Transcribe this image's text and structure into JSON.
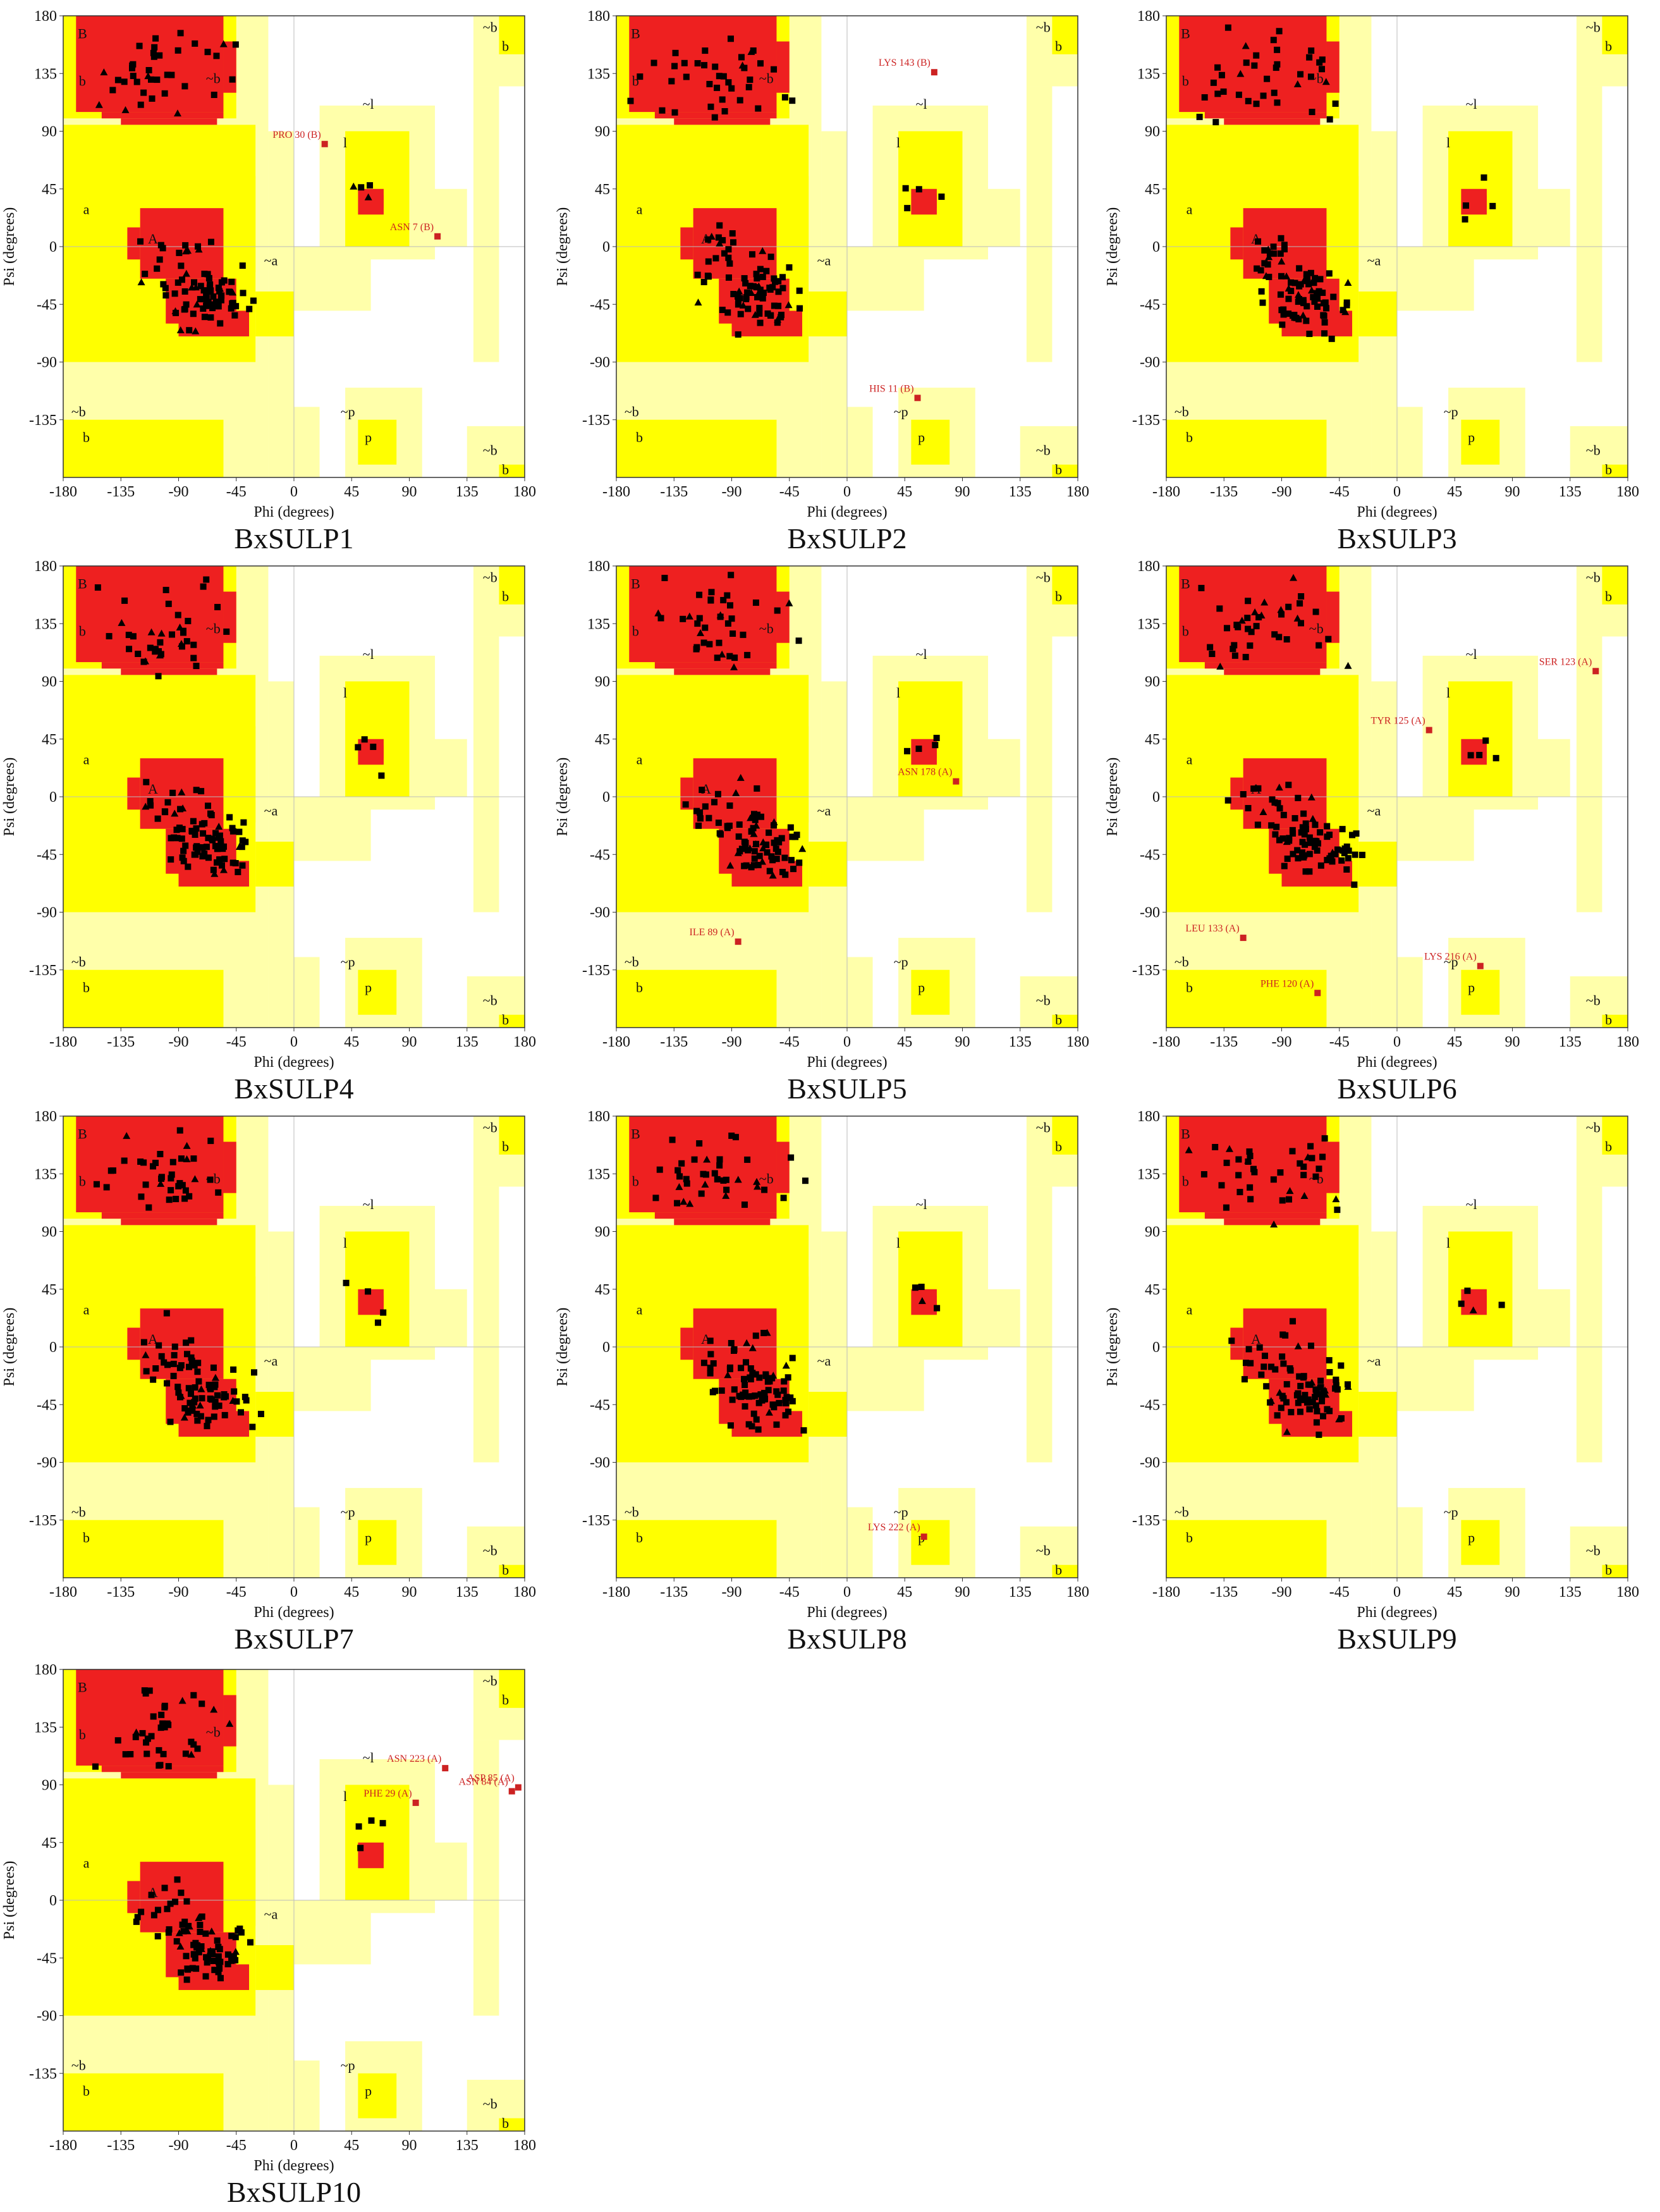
{
  "colors": {
    "core": "#ee2020",
    "allowed": "#ffff00",
    "generous": "#ffffaa",
    "frame": "#333333",
    "residue": "#000000",
    "outlier": "#cc2222"
  },
  "axis": {
    "xlabel": "Phi (degrees)",
    "ylabel": "Psi (degrees)",
    "xticks": [
      "-180",
      "-135",
      "-90",
      "-45",
      "0",
      "45",
      "90",
      "135",
      "180"
    ],
    "yticks": [
      "180",
      "135",
      "90",
      "45",
      "0",
      "-45",
      "-90",
      "-135"
    ]
  },
  "region_labels": [
    {
      "text": "B",
      "phi": -165,
      "psi": 165
    },
    {
      "text": "b",
      "phi": -165,
      "psi": 128
    },
    {
      "text": "~b",
      "phi": -63,
      "psi": 130
    },
    {
      "text": "~l",
      "phi": 58,
      "psi": 110
    },
    {
      "text": "l",
      "phi": 40,
      "psi": 80
    },
    {
      "text": "a",
      "phi": -162,
      "psi": 28
    },
    {
      "text": "A",
      "phi": -110,
      "psi": 5
    },
    {
      "text": "~a",
      "phi": -18,
      "psi": -12
    },
    {
      "text": "~b",
      "phi": -168,
      "psi": -130
    },
    {
      "text": "b",
      "phi": -162,
      "psi": -150
    },
    {
      "text": "~p",
      "phi": 42,
      "psi": -130
    },
    {
      "text": "p",
      "phi": 58,
      "psi": -150
    },
    {
      "text": "~b",
      "phi": 153,
      "psi": 170
    },
    {
      "text": "b",
      "phi": 165,
      "psi": 155
    },
    {
      "text": "~b",
      "phi": 153,
      "psi": -160
    },
    {
      "text": "b",
      "phi": 165,
      "psi": -175
    }
  ],
  "chart_data": [
    {
      "type": "scatter",
      "title": "BxSULP1",
      "xlim": [
        -180,
        180
      ],
      "ylim": [
        -180,
        180
      ],
      "outliers": [
        {
          "label": "PRO 30 (B)",
          "phi": 24,
          "psi": 80
        },
        {
          "label": "ASN 7 (B)",
          "phi": 112,
          "psi": 8
        }
      ]
    },
    {
      "type": "scatter",
      "title": "BxSULP2",
      "xlim": [
        -180,
        180
      ],
      "ylim": [
        -180,
        180
      ],
      "outliers": [
        {
          "label": "LYS 143 (B)",
          "phi": 68,
          "psi": 136
        },
        {
          "label": "HIS 11 (B)",
          "phi": 55,
          "psi": -118
        }
      ]
    },
    {
      "type": "scatter",
      "title": "BxSULP3",
      "xlim": [
        -180,
        180
      ],
      "ylim": [
        -180,
        180
      ],
      "outliers": []
    },
    {
      "type": "scatter",
      "title": "BxSULP4",
      "xlim": [
        -180,
        180
      ],
      "ylim": [
        -180,
        180
      ],
      "outliers": []
    },
    {
      "type": "scatter",
      "title": "BxSULP5",
      "xlim": [
        -180,
        180
      ],
      "ylim": [
        -180,
        180
      ],
      "outliers": [
        {
          "label": "ASN 178 (A)",
          "phi": 85,
          "psi": 12
        },
        {
          "label": "ILE 89 (A)",
          "phi": -85,
          "psi": -113
        }
      ]
    },
    {
      "type": "scatter",
      "title": "BxSULP6",
      "xlim": [
        -180,
        180
      ],
      "ylim": [
        -180,
        180
      ],
      "outliers": [
        {
          "label": "SER 123 (A)",
          "phi": 155,
          "psi": 98
        },
        {
          "label": "TYR 125 (A)",
          "phi": 25,
          "psi": 52
        },
        {
          "label": "LEU 133 (A)",
          "phi": -120,
          "psi": -110
        },
        {
          "label": "LYS 216 (A)",
          "phi": 65,
          "psi": -132
        },
        {
          "label": "PHE 120 (A)",
          "phi": -62,
          "psi": -153
        }
      ]
    },
    {
      "type": "scatter",
      "title": "BxSULP7",
      "xlim": [
        -180,
        180
      ],
      "ylim": [
        -180,
        180
      ],
      "outliers": []
    },
    {
      "type": "scatter",
      "title": "BxSULP8",
      "xlim": [
        -180,
        180
      ],
      "ylim": [
        -180,
        180
      ],
      "outliers": [
        {
          "label": "LYS 222 (A)",
          "phi": 60,
          "psi": -148
        }
      ]
    },
    {
      "type": "scatter",
      "title": "BxSULP9",
      "xlim": [
        -180,
        180
      ],
      "ylim": [
        -180,
        180
      ],
      "outliers": []
    },
    {
      "type": "scatter",
      "title": "BxSULP10",
      "xlim": [
        -180,
        180
      ],
      "ylim": [
        -180,
        180
      ],
      "outliers": [
        {
          "label": "ASN 223 (A)",
          "phi": 118,
          "psi": 103
        },
        {
          "label": "PHE 29 (A)",
          "phi": 95,
          "psi": 76
        },
        {
          "label": "ASP 85 (A)",
          "phi": 175,
          "psi": 88
        },
        {
          "label": "ASN 84 (A)",
          "phi": 170,
          "psi": 85
        }
      ]
    }
  ]
}
